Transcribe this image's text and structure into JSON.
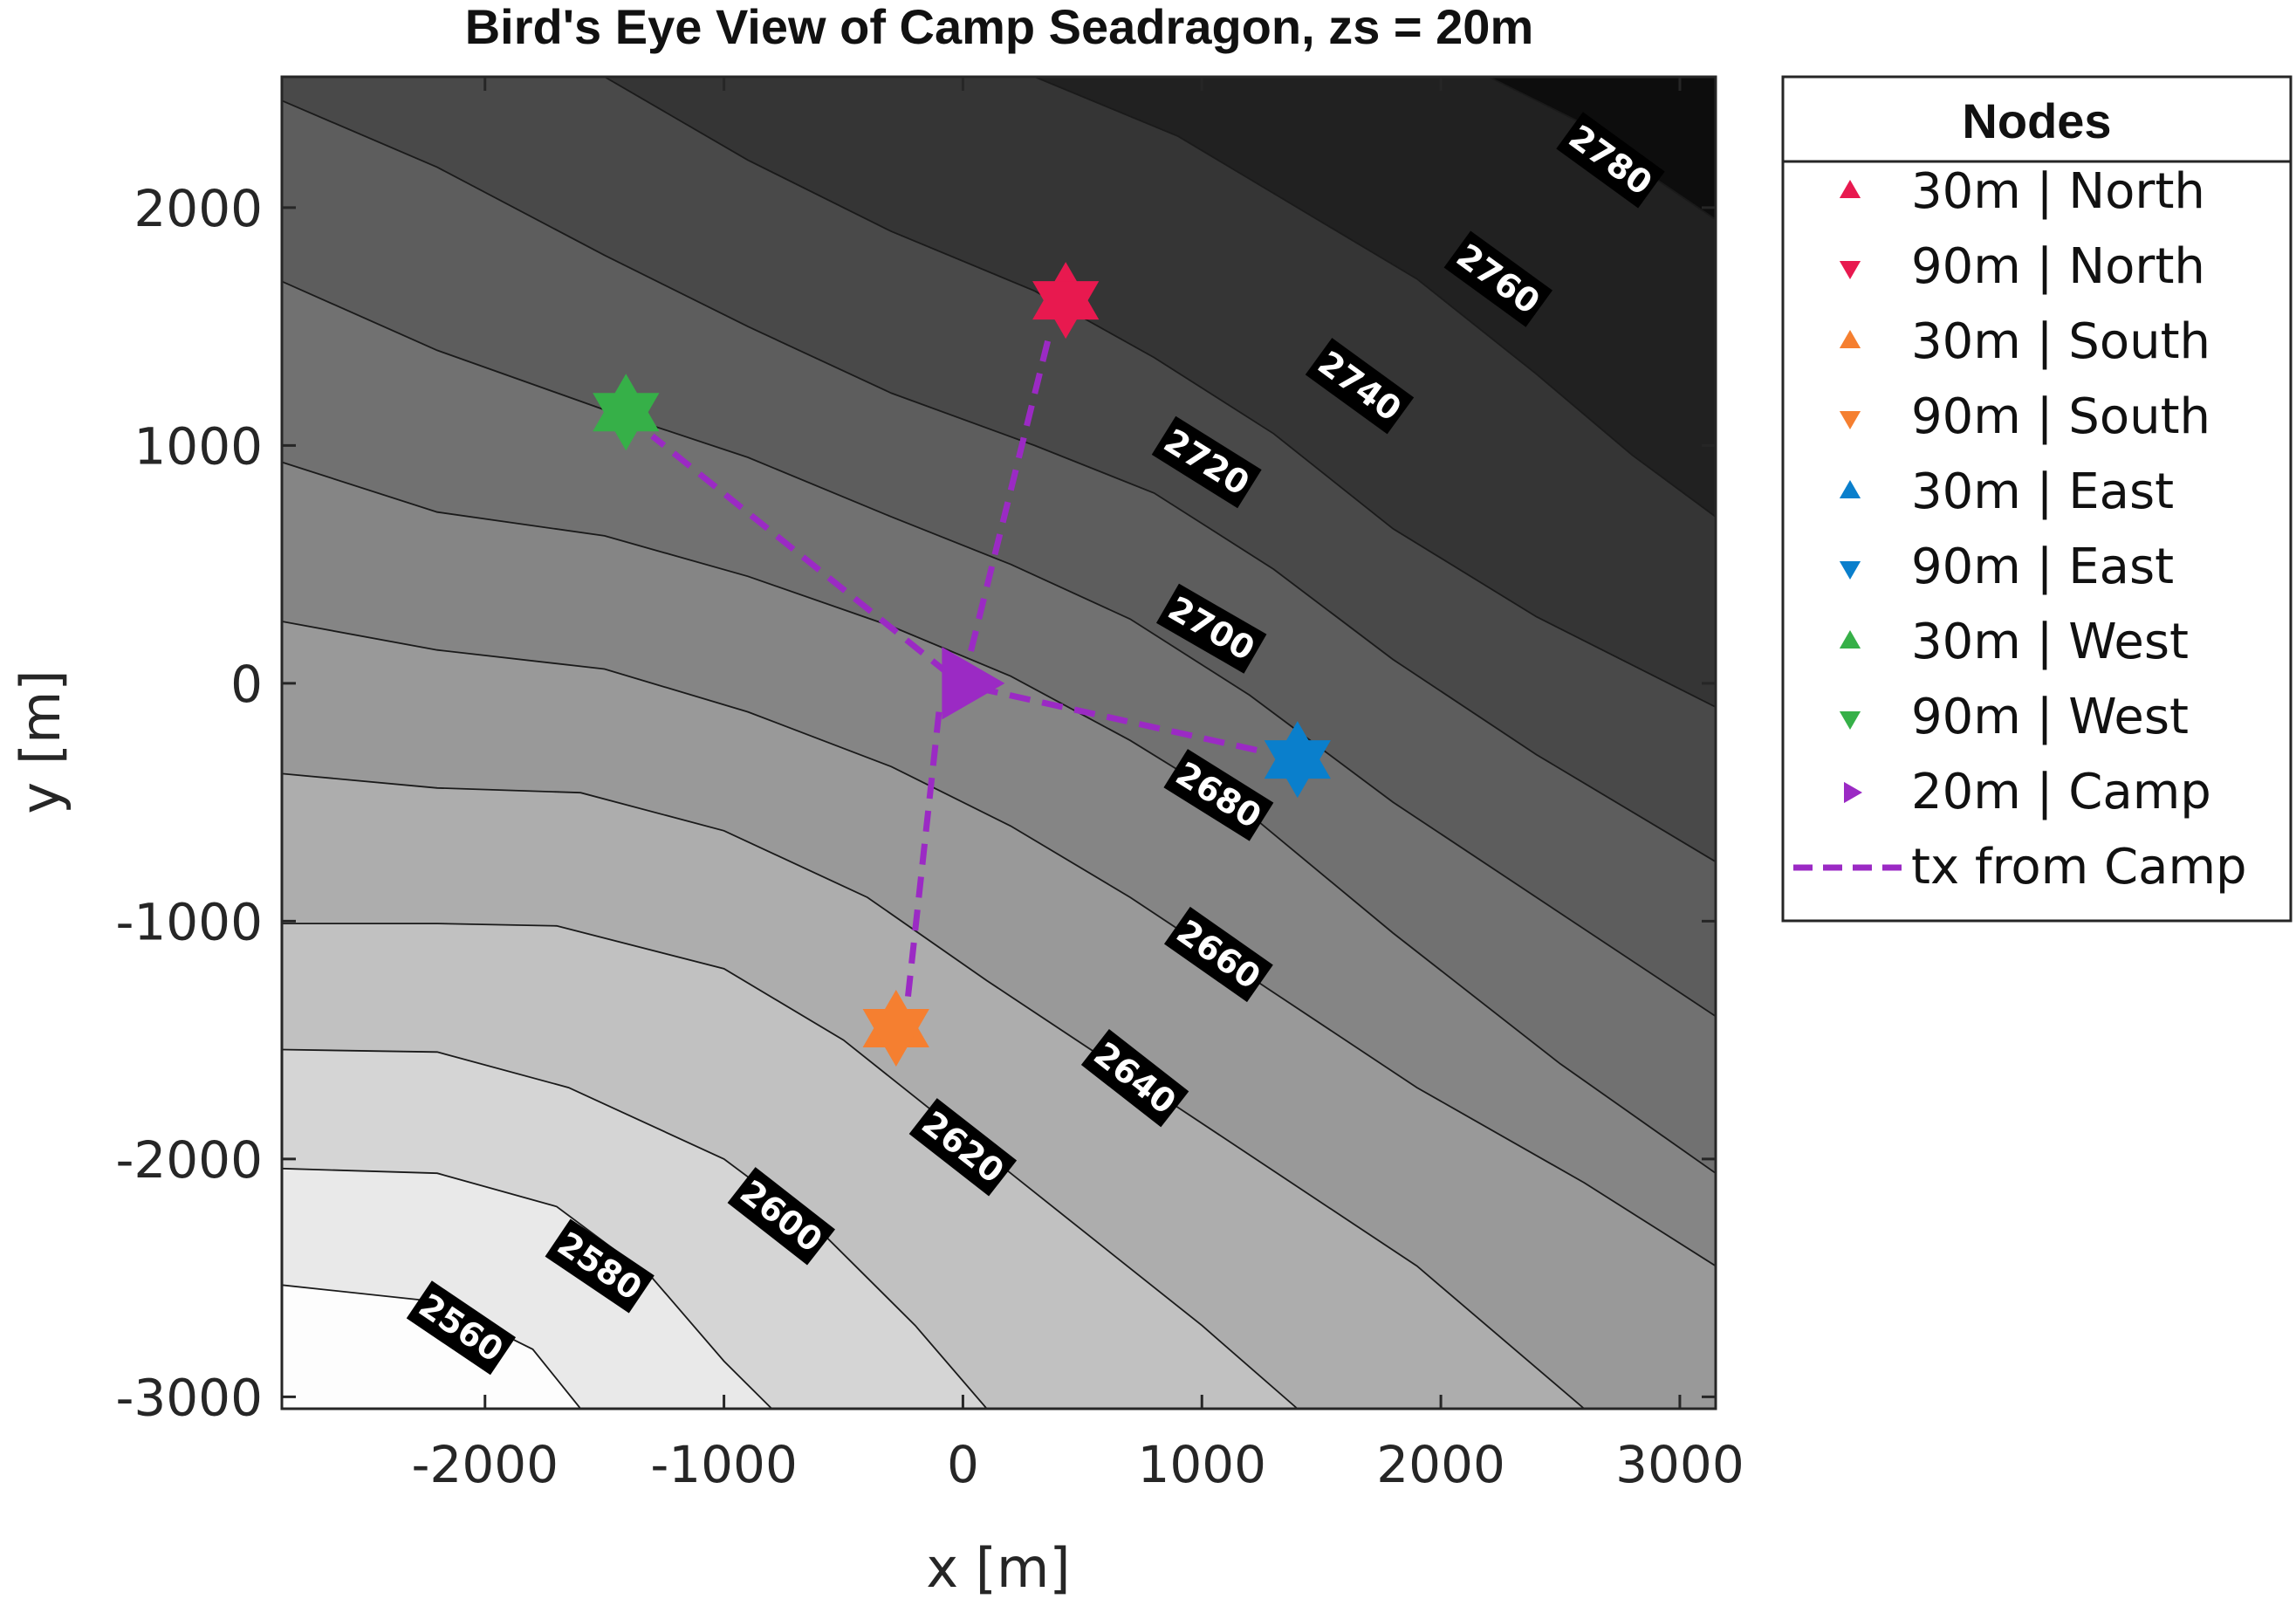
{
  "chart_data": {
    "type": "contour",
    "title": "Bird's Eye View of Camp Seadragon, zs = 20m",
    "xlabel": "x [m]",
    "ylabel": "y [m]",
    "xlim": [
      -2850,
      3150
    ],
    "ylim": [
      -3050,
      2550
    ],
    "xticks": [
      -2000,
      -1000,
      0,
      1000,
      2000,
      3000
    ],
    "yticks": [
      2000,
      1000,
      0,
      -1000,
      -2000,
      -3000
    ],
    "grid": false,
    "colormap": "gray",
    "contour_levels": [
      {
        "level": 2560,
        "points": [
          [
            -2850,
            -2530
          ],
          [
            -2200,
            -2600
          ],
          [
            -1800,
            -2800
          ],
          [
            -1600,
            -3050
          ]
        ]
      },
      {
        "level": 2580,
        "points": [
          [
            -2850,
            -2040
          ],
          [
            -2200,
            -2060
          ],
          [
            -1700,
            -2200
          ],
          [
            -1300,
            -2500
          ],
          [
            -1000,
            -2850
          ],
          [
            -800,
            -3050
          ]
        ]
      },
      {
        "level": 2600,
        "points": [
          [
            -2850,
            -1540
          ],
          [
            -2200,
            -1550
          ],
          [
            -1650,
            -1700
          ],
          [
            -1000,
            -2000
          ],
          [
            -600,
            -2300
          ],
          [
            -200,
            -2700
          ],
          [
            100,
            -3050
          ]
        ]
      },
      {
        "level": 2620,
        "points": [
          [
            -2850,
            -1010
          ],
          [
            -2200,
            -1010
          ],
          [
            -1700,
            -1020
          ],
          [
            -1000,
            -1200
          ],
          [
            -500,
            -1500
          ],
          [
            0,
            -1900
          ],
          [
            500,
            -2300
          ],
          [
            1000,
            -2700
          ],
          [
            1400,
            -3050
          ]
        ]
      },
      {
        "level": 2640,
        "points": [
          [
            -2850,
            -380
          ],
          [
            -2200,
            -440
          ],
          [
            -1600,
            -460
          ],
          [
            -1000,
            -620
          ],
          [
            -400,
            -900
          ],
          [
            100,
            -1250
          ],
          [
            700,
            -1650
          ],
          [
            1300,
            -2050
          ],
          [
            1900,
            -2450
          ],
          [
            2600,
            -3050
          ]
        ]
      },
      {
        "level": 2660,
        "points": [
          [
            -2850,
            260
          ],
          [
            -2200,
            140
          ],
          [
            -1500,
            60
          ],
          [
            -900,
            -120
          ],
          [
            -300,
            -350
          ],
          [
            200,
            -600
          ],
          [
            700,
            -900
          ],
          [
            1300,
            -1300
          ],
          [
            1900,
            -1700
          ],
          [
            2600,
            -2100
          ],
          [
            3150,
            -2450
          ]
        ]
      },
      {
        "level": 2680,
        "points": [
          [
            -2850,
            930
          ],
          [
            -2200,
            720
          ],
          [
            -1500,
            620
          ],
          [
            -900,
            450
          ],
          [
            -300,
            240
          ],
          [
            200,
            30
          ],
          [
            700,
            -240
          ],
          [
            1200,
            -550
          ],
          [
            1800,
            -1050
          ],
          [
            2500,
            -1600
          ],
          [
            3150,
            -2060
          ]
        ]
      },
      {
        "level": 2700,
        "points": [
          [
            -2850,
            1690
          ],
          [
            -2200,
            1400
          ],
          [
            -1500,
            1150
          ],
          [
            -900,
            950
          ],
          [
            -300,
            700
          ],
          [
            200,
            500
          ],
          [
            700,
            270
          ],
          [
            1200,
            -50
          ],
          [
            1800,
            -500
          ],
          [
            2400,
            -900
          ],
          [
            3150,
            -1400
          ]
        ]
      },
      {
        "level": 2720,
        "points": [
          [
            -2850,
            2450
          ],
          [
            -2200,
            2170
          ],
          [
            -1500,
            1800
          ],
          [
            -900,
            1500
          ],
          [
            -300,
            1220
          ],
          [
            300,
            1000
          ],
          [
            800,
            800
          ],
          [
            1300,
            480
          ],
          [
            1800,
            100
          ],
          [
            2400,
            -300
          ],
          [
            3150,
            -750
          ]
        ]
      },
      {
        "level": 2740,
        "points": [
          [
            -1500,
            2550
          ],
          [
            -900,
            2200
          ],
          [
            -300,
            1900
          ],
          [
            300,
            1650
          ],
          [
            800,
            1370
          ],
          [
            1300,
            1050
          ],
          [
            1800,
            650
          ],
          [
            2400,
            280
          ],
          [
            3150,
            -100
          ]
        ]
      },
      {
        "level": 2760,
        "points": [
          [
            300,
            2550
          ],
          [
            900,
            2300
          ],
          [
            1400,
            2000
          ],
          [
            1900,
            1700
          ],
          [
            2400,
            1300
          ],
          [
            2800,
            960
          ],
          [
            3150,
            700
          ]
        ]
      },
      {
        "level": 2780,
        "points": [
          [
            2200,
            2550
          ],
          [
            2600,
            2350
          ],
          [
            2900,
            2120
          ],
          [
            3150,
            1950
          ]
        ]
      }
    ],
    "contour_labels": [
      {
        "text": "2560",
        "x": -2100,
        "y": -2710,
        "angle": 34
      },
      {
        "text": "2580",
        "x": -1520,
        "y": -2450,
        "angle": 34
      },
      {
        "text": "2600",
        "x": -760,
        "y": -2240,
        "angle": 38
      },
      {
        "text": "2620",
        "x": 0,
        "y": -1950,
        "angle": 38
      },
      {
        "text": "2640",
        "x": 720,
        "y": -1660,
        "angle": 38
      },
      {
        "text": "2660",
        "x": 1070,
        "y": -1140,
        "angle": 35
      },
      {
        "text": "2680",
        "x": 1070,
        "y": -470,
        "angle": 32
      },
      {
        "text": "2700",
        "x": 1040,
        "y": 230,
        "angle": 30
      },
      {
        "text": "2720",
        "x": 1020,
        "y": 930,
        "angle": 32
      },
      {
        "text": "2740",
        "x": 1660,
        "y": 1250,
        "angle": 36
      },
      {
        "text": "2760",
        "x": 2240,
        "y": 1700,
        "angle": 36
      },
      {
        "text": "2780",
        "x": 2710,
        "y": 2200,
        "angle": 36
      }
    ],
    "nodes": [
      {
        "name": "North",
        "x": 430,
        "y": 1610,
        "color": "#e8194f"
      },
      {
        "name": "South",
        "x": -280,
        "y": -1450,
        "color": "#f57f30"
      },
      {
        "name": "East",
        "x": 1400,
        "y": -320,
        "color": "#0a7fcc"
      },
      {
        "name": "West",
        "x": -1410,
        "y": 1140,
        "color": "#36b048"
      }
    ],
    "camp": {
      "name": "Camp",
      "x": 0,
      "y": 0,
      "color": "#9b2ac4"
    },
    "links": [
      {
        "from": "Camp",
        "to": "North",
        "points": [
          [
            0,
            0
          ],
          [
            365,
            1480
          ]
        ]
      },
      {
        "from": "Camp",
        "to": "South",
        "points": [
          [
            -100,
            -120
          ],
          [
            -230,
            -1320
          ]
        ]
      },
      {
        "from": "Camp",
        "to": "East",
        "points": [
          [
            60,
            -20
          ],
          [
            1270,
            -290
          ]
        ]
      },
      {
        "from": "Camp",
        "to": "West",
        "points": [
          [
            -60,
            40
          ],
          [
            -1300,
            1040
          ]
        ]
      }
    ],
    "link_color": "#9b2ac4",
    "legend": {
      "title": "Nodes",
      "placement": "outside-right",
      "entries": [
        {
          "label": "30m | North",
          "marker": "triangle-up",
          "color": "#e8194f"
        },
        {
          "label": "90m | North",
          "marker": "triangle-down",
          "color": "#e8194f"
        },
        {
          "label": "30m | South",
          "marker": "triangle-up",
          "color": "#f57f30"
        },
        {
          "label": "90m | South",
          "marker": "triangle-down",
          "color": "#f57f30"
        },
        {
          "label": "30m | East",
          "marker": "triangle-up",
          "color": "#0a7fcc"
        },
        {
          "label": "90m | East",
          "marker": "triangle-down",
          "color": "#0a7fcc"
        },
        {
          "label": "30m | West",
          "marker": "triangle-up",
          "color": "#36b048"
        },
        {
          "label": "90m | West",
          "marker": "triangle-down",
          "color": "#36b048"
        },
        {
          "label": "20m | Camp",
          "marker": "triangle-right",
          "color": "#9b2ac4"
        },
        {
          "label": "tx from Camp",
          "marker": "dashed-line",
          "color": "#9b2ac4"
        }
      ]
    }
  }
}
